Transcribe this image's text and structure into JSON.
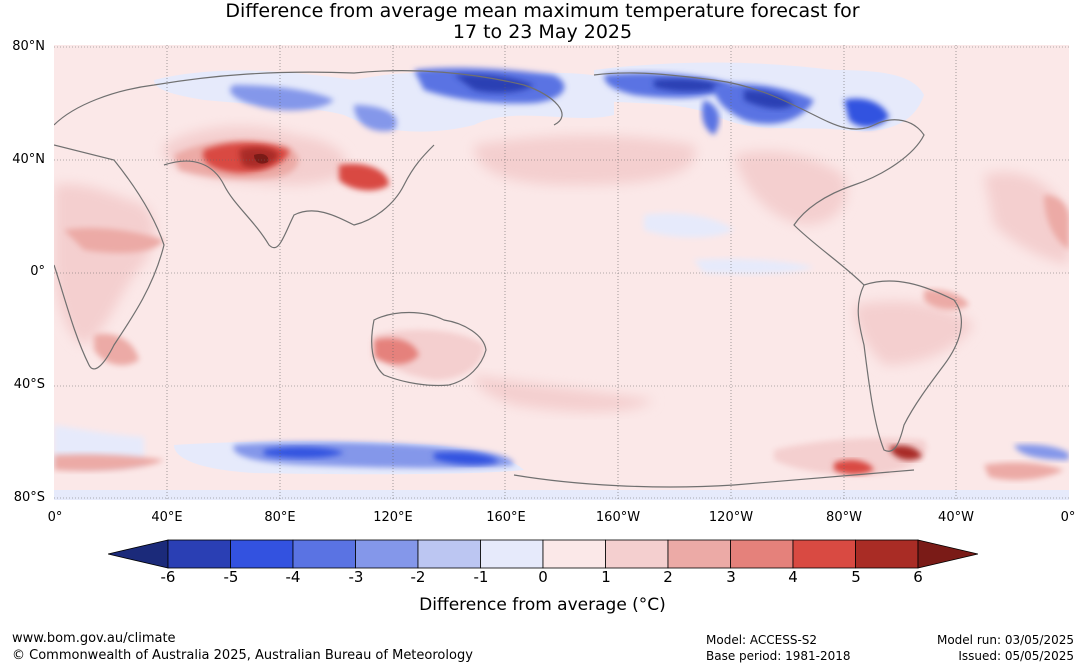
{
  "title": {
    "line1": "Difference from average mean maximum temperature forecast for",
    "line2": "17 to 23 May 2025"
  },
  "map": {
    "lat_labels": [
      "80°N",
      "40°N",
      "0°",
      "40°S",
      "80°S"
    ],
    "lon_labels": [
      "0°",
      "40°E",
      "80°E",
      "120°E",
      "160°E",
      "160°W",
      "120°W",
      "80°W",
      "40°W",
      "0°"
    ]
  },
  "colorbar": {
    "label": "Difference from average (°C)",
    "ticks": [
      "-6",
      "-5",
      "-4",
      "-3",
      "-2",
      "-1",
      "0",
      "1",
      "2",
      "3",
      "4",
      "5",
      "6"
    ],
    "colors": [
      "#1b2a7a",
      "#2a3fb4",
      "#3352e0",
      "#5a73e3",
      "#8497ea",
      "#bcc6f2",
      "#e6eafb",
      "#fbe8e8",
      "#f4cfcf",
      "#ecaaa6",
      "#e5817b",
      "#d94a42",
      "#a92c25",
      "#7a1b17"
    ]
  },
  "footer": {
    "url": "www.bom.gov.au/climate",
    "copyright": "© Commonwealth of Australia 2025, Australian Bureau of Meteorology",
    "model": "Model: ACCESS-S2",
    "base_period": "Base period: 1981-2018",
    "model_run": "Model run: 03/05/2025",
    "issued": "Issued: 05/05/2025"
  }
}
